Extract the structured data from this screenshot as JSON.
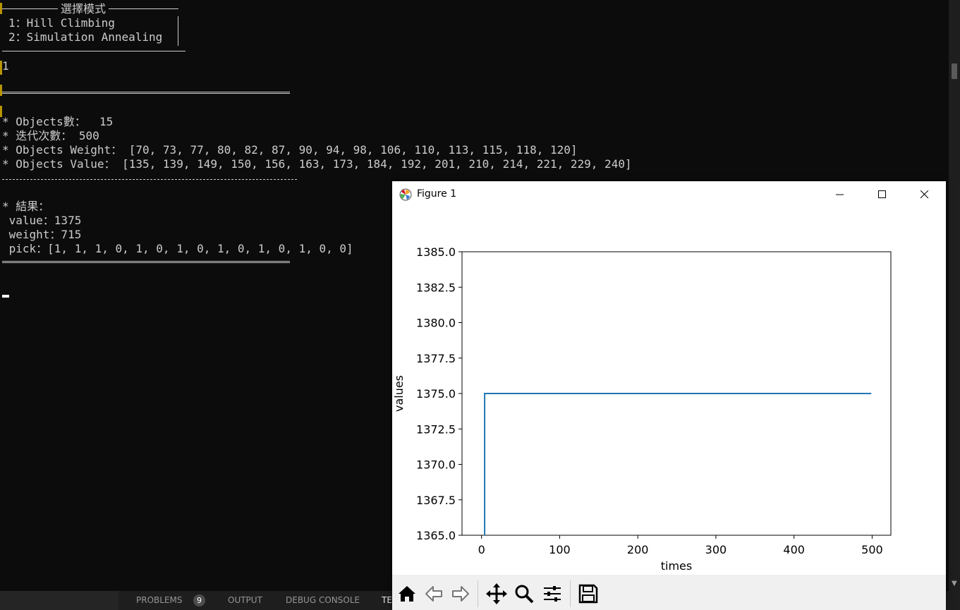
{
  "terminal": {
    "menu": {
      "title": "選擇模式",
      "options": [
        "1：Hill Climbing",
        "2：Simulation Annealing"
      ]
    },
    "input": "1",
    "separator": "========================================",
    "info": [
      "* Objects數：  15",
      "* 迭代次數： 500",
      "* Objects Weight： [70, 73, 77, 80, 82, 87, 90, 94, 98, 106, 110, 113, 115, 118, 120]",
      "* Objects Value： [135, 139, 149, 150, 156, 163, 173, 184, 192, 201, 210, 214, 221, 229, 240]"
    ],
    "result_header": "* 結果：",
    "result_lines": [
      " value：1375",
      " weight：715",
      " pick：[1, 1, 1, 0, 1, 0, 1, 0, 1, 0, 1, 0, 1, 0, 0]"
    ],
    "separator_end": "========================================"
  },
  "panel": {
    "tabs": [
      {
        "label": "PROBLEMS",
        "badge": "9"
      },
      {
        "label": "OUTPUT"
      },
      {
        "label": "DEBUG CONSOLE"
      },
      {
        "label": "TE"
      }
    ]
  },
  "figure": {
    "title": "Figure 1",
    "toolbar": [
      "home-icon",
      "back-icon",
      "forward-icon",
      "pan-icon",
      "zoom-icon",
      "configure-subplots-icon",
      "save-icon"
    ]
  },
  "chart_data": {
    "type": "line",
    "xlabel": "times",
    "ylabel": "values",
    "xlim": [
      -25,
      524
    ],
    "ylim": [
      1365.0,
      1385.0
    ],
    "xticks": [
      0,
      100,
      200,
      300,
      400,
      500
    ],
    "yticks": [
      "1365.0",
      "1367.5",
      "1370.0",
      "1372.5",
      "1375.0",
      "1377.5",
      "1380.0",
      "1382.5",
      "1385.0"
    ],
    "grid": false,
    "series": [
      {
        "color": "#1f77b4",
        "x": [
          4,
          4,
          499
        ],
        "y": [
          1364.0,
          1375,
          1375
        ]
      }
    ]
  }
}
